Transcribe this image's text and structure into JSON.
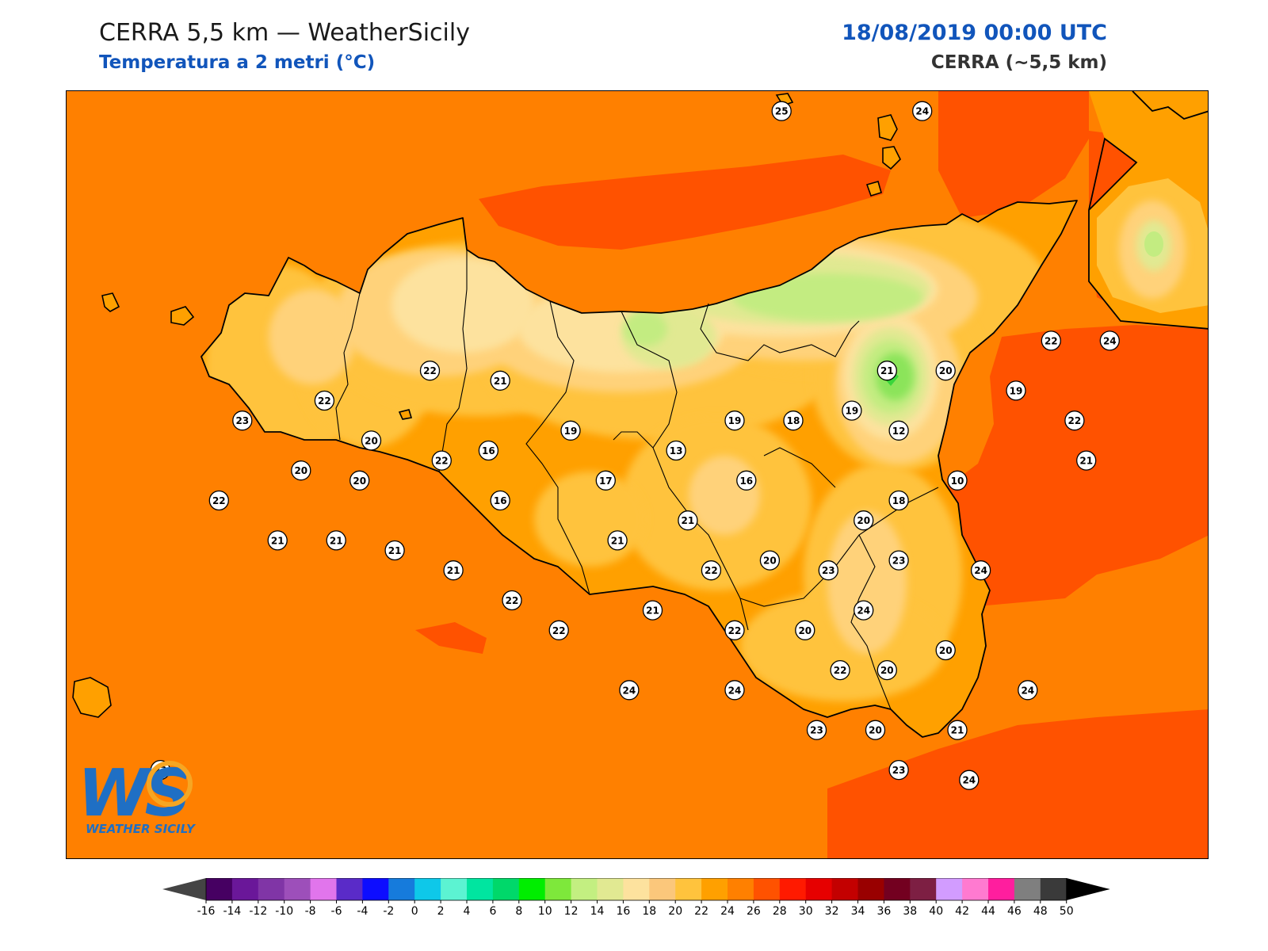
{
  "header": {
    "title": "CERRA 5,5 km — WeatherSicily",
    "subtitle": "Temperatura a 2 metri (°C)",
    "datetime": "18/08/2019 00:00 UTC",
    "model": "CERRA (~5,5 km)"
  },
  "logo": {
    "mark": "WS",
    "name": "WEATHER SICILY"
  },
  "colors": {
    "sea": "#ff8000",
    "land_base": "#ffa000",
    "t20": "#ffc33d",
    "t18": "#ffd27a",
    "t16": "#fde29e",
    "t14": "#e1e992",
    "t12": "#c3ec81",
    "t10": "#8be45a",
    "t8": "#39d63b",
    "t26": "#ff5200",
    "coast": "#000000"
  },
  "colorbar": {
    "ticks": [
      "-16",
      "-14",
      "-12",
      "-10",
      "-8",
      "-6",
      "-4",
      "-2",
      "0",
      "2",
      "4",
      "6",
      "8",
      "10",
      "12",
      "14",
      "16",
      "18",
      "20",
      "22",
      "24",
      "26",
      "28",
      "30",
      "32",
      "34",
      "36",
      "38",
      "40",
      "42",
      "44",
      "46",
      "48",
      "50"
    ],
    "colors": [
      "#460062",
      "#6a1799",
      "#8035a6",
      "#9d4fba",
      "#e175ec",
      "#5a2bc8",
      "#0d0dff",
      "#167bdc",
      "#0ec8e9",
      "#5cf3d2",
      "#00e5a0",
      "#00d86a",
      "#00ee00",
      "#7ee83b",
      "#c3ef81",
      "#e1e992",
      "#fde29e",
      "#fbc77b",
      "#ffc33d",
      "#ffa000",
      "#ff8000",
      "#ff5200",
      "#ff1a00",
      "#e60000",
      "#c30000",
      "#990000",
      "#730020",
      "#7d1f43",
      "#d29cff",
      "#ff7ad0",
      "#ff1e9e",
      "#7f7f7f",
      "#3a3a3a"
    ],
    "min_color": "#444444",
    "max_color": "#000000"
  },
  "stations": [
    {
      "v": "25",
      "x": 28.4,
      "y": 130.2
    },
    {
      "v": "24",
      "x": 29.6,
      "y": 130.2
    },
    {
      "v": "22",
      "x": 25.4,
      "y": 127.6
    },
    {
      "v": "21",
      "x": 26.0,
      "y": 127.5
    },
    {
      "v": "22",
      "x": 24.5,
      "y": 127.3
    },
    {
      "v": "23",
      "x": 23.8,
      "y": 127.1
    },
    {
      "v": "20",
      "x": 24.9,
      "y": 126.9
    },
    {
      "v": "20",
      "x": 24.3,
      "y": 126.6
    },
    {
      "v": "22",
      "x": 23.6,
      "y": 126.3
    },
    {
      "v": "21",
      "x": 24.1,
      "y": 125.9
    },
    {
      "v": "20",
      "x": 24.8,
      "y": 126.5
    },
    {
      "v": "22",
      "x": 25.5,
      "y": 126.7
    },
    {
      "v": "16",
      "x": 25.9,
      "y": 126.8
    },
    {
      "v": "16",
      "x": 26.0,
      "y": 126.3
    },
    {
      "v": "19",
      "x": 26.6,
      "y": 127.0
    },
    {
      "v": "17",
      "x": 26.9,
      "y": 126.5
    },
    {
      "v": "13",
      "x": 27.5,
      "y": 126.8
    },
    {
      "v": "19",
      "x": 28.0,
      "y": 127.1
    },
    {
      "v": "16",
      "x": 28.1,
      "y": 126.5
    },
    {
      "v": "18",
      "x": 28.5,
      "y": 127.1
    },
    {
      "v": "19",
      "x": 29.0,
      "y": 127.2
    },
    {
      "v": "21",
      "x": 29.3,
      "y": 127.6
    },
    {
      "v": "20",
      "x": 29.8,
      "y": 127.6
    },
    {
      "v": "19",
      "x": 30.4,
      "y": 127.4
    },
    {
      "v": "22",
      "x": 30.7,
      "y": 127.9
    },
    {
      "v": "24",
      "x": 31.2,
      "y": 127.9
    },
    {
      "v": "22",
      "x": 30.9,
      "y": 127.1
    },
    {
      "v": "12",
      "x": 29.4,
      "y": 127.0
    },
    {
      "v": "10",
      "x": 29.9,
      "y": 126.5
    },
    {
      "v": "21",
      "x": 31.0,
      "y": 126.7
    },
    {
      "v": "18",
      "x": 29.4,
      "y": 126.3
    },
    {
      "v": "20",
      "x": 29.1,
      "y": 126.1
    },
    {
      "v": "21",
      "x": 27.6,
      "y": 126.1
    },
    {
      "v": "21",
      "x": 27.0,
      "y": 125.9
    },
    {
      "v": "23",
      "x": 29.4,
      "y": 125.7
    },
    {
      "v": "24",
      "x": 30.1,
      "y": 125.6
    },
    {
      "v": "20",
      "x": 28.3,
      "y": 125.7
    },
    {
      "v": "23",
      "x": 28.8,
      "y": 125.6
    },
    {
      "v": "22",
      "x": 27.8,
      "y": 125.6
    },
    {
      "v": "21",
      "x": 24.6,
      "y": 125.9
    },
    {
      "v": "21",
      "x": 25.1,
      "y": 125.8
    },
    {
      "v": "21",
      "x": 25.6,
      "y": 125.6
    },
    {
      "v": "22",
      "x": 26.1,
      "y": 125.3
    },
    {
      "v": "21",
      "x": 27.3,
      "y": 125.2
    },
    {
      "v": "24",
      "x": 29.1,
      "y": 125.2
    },
    {
      "v": "22",
      "x": 26.5,
      "y": 125.0
    },
    {
      "v": "22",
      "x": 28.0,
      "y": 125.0
    },
    {
      "v": "20",
      "x": 28.6,
      "y": 125.0
    },
    {
      "v": "22",
      "x": 28.9,
      "y": 124.6
    },
    {
      "v": "20",
      "x": 29.3,
      "y": 124.6
    },
    {
      "v": "20",
      "x": 29.8,
      "y": 124.8
    },
    {
      "v": "24",
      "x": 27.1,
      "y": 124.4
    },
    {
      "v": "24",
      "x": 28.0,
      "y": 124.4
    },
    {
      "v": "24",
      "x": 30.5,
      "y": 124.4
    },
    {
      "v": "23",
      "x": 28.7,
      "y": 124.0
    },
    {
      "v": "20",
      "x": 29.2,
      "y": 124.0
    },
    {
      "v": "21",
      "x": 29.9,
      "y": 124.0
    },
    {
      "v": "23",
      "x": 29.4,
      "y": 123.6
    },
    {
      "v": "24",
      "x": 30.0,
      "y": 123.5
    },
    {
      "v": "23",
      "x": 23.1,
      "y": 123.6
    }
  ]
}
